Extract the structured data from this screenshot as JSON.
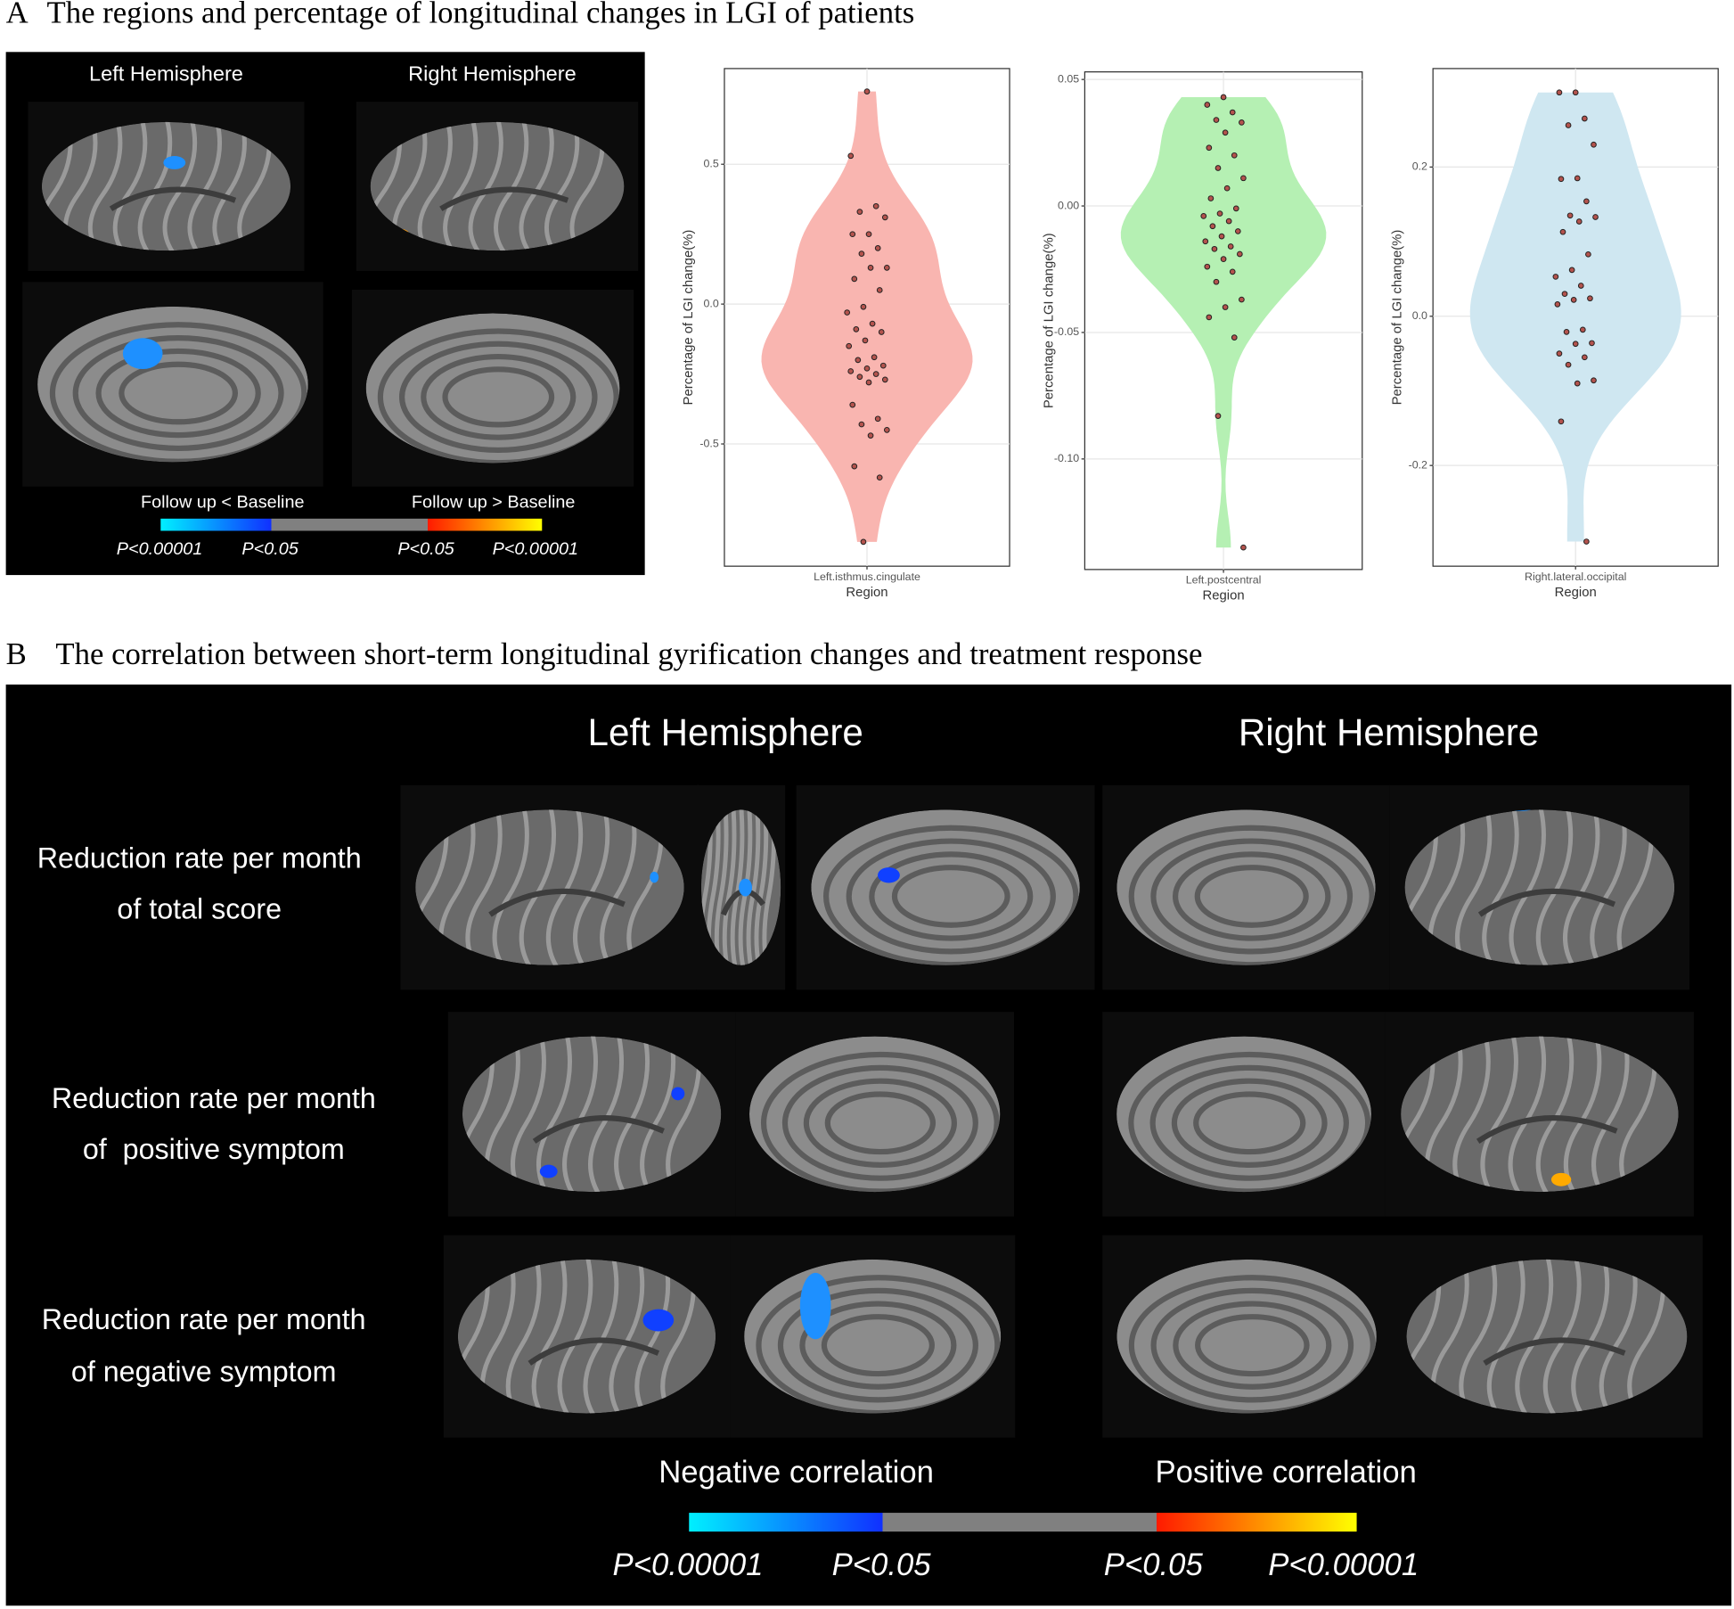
{
  "panel_a": {
    "label": "A",
    "title": "The regions and percentage of longitudinal changes in LGI of patients",
    "hemispheres": [
      "Left Hemisphere",
      "Right Hemisphere"
    ],
    "legend": {
      "left": "Follow up < Baseline",
      "right": "Follow up > Baseline",
      "ticks": [
        "P<0.00001",
        "P<0.05",
        "P<0.05",
        "P<0.00001"
      ]
    }
  },
  "chart_data": [
    {
      "type": "violin",
      "categories": [
        "Left.isthmus.cingulate"
      ],
      "xlabel": "Region",
      "ylabel": "Percentage of LGI change(%)",
      "color": "#f9b5b0",
      "point_color": "#b4534d",
      "grid": true,
      "ylim": [
        -0.937,
        0.842
      ],
      "yticks": [
        0.5,
        {
          "value": 0,
          "label": "0.0"
        },
        -0.5
      ],
      "values": [
        0.76,
        0.53,
        0.35,
        0.33,
        0.31,
        0.25,
        0.25,
        0.2,
        0.18,
        0.13,
        0.13,
        0.09,
        0.05,
        -0.01,
        -0.03,
        -0.07,
        -0.09,
        -0.1,
        -0.13,
        -0.15,
        -0.19,
        -0.2,
        -0.22,
        -0.23,
        -0.24,
        -0.25,
        -0.26,
        -0.27,
        -0.28,
        -0.36,
        -0.41,
        -0.43,
        -0.45,
        -0.47,
        -0.58,
        -0.62,
        -0.85
      ]
    },
    {
      "type": "violin",
      "categories": [
        "Left.postcentral"
      ],
      "xlabel": "Region",
      "ylabel": "Percentage of LGI change(%)",
      "color": "#b5f0b3",
      "point_color": "#b4534d",
      "grid": true,
      "ylim": [
        -0.1437,
        0.053
      ],
      "yticks": [
        0.05,
        {
          "value": 0,
          "label": "0.00"
        },
        -0.05,
        {
          "value": -0.1,
          "label": "-0.10"
        }
      ],
      "values": [
        0.043,
        0.04,
        0.037,
        0.034,
        0.033,
        0.029,
        0.023,
        0.02,
        0.015,
        0.011,
        0.007,
        0.003,
        -0.001,
        -0.003,
        -0.004,
        -0.006,
        -0.008,
        -0.01,
        -0.012,
        -0.014,
        -0.016,
        -0.017,
        -0.019,
        -0.021,
        -0.024,
        -0.026,
        -0.03,
        -0.037,
        -0.04,
        -0.044,
        -0.052,
        -0.083,
        -0.135
      ]
    },
    {
      "type": "violin",
      "categories": [
        "Right.lateral.occipital"
      ],
      "xlabel": "Region",
      "ylabel": "Percentage of LGI change(%)",
      "color": "#cfe7f1",
      "point_color": "#b4534d",
      "grid": true,
      "ylim": [
        -0.335,
        0.332
      ],
      "yticks": [
        0.2,
        {
          "value": 0,
          "label": "0.0"
        },
        -0.2
      ],
      "values": [
        0.3,
        0.3,
        0.265,
        0.256,
        0.23,
        0.185,
        0.184,
        0.154,
        0.135,
        0.133,
        0.127,
        0.113,
        0.083,
        0.062,
        0.053,
        0.041,
        0.03,
        0.024,
        0.022,
        0.016,
        -0.018,
        -0.021,
        -0.036,
        -0.037,
        -0.05,
        -0.055,
        -0.065,
        -0.086,
        -0.09,
        -0.141,
        -0.302
      ]
    }
  ],
  "panel_b": {
    "label": "B",
    "title": "The correlation between short-term longitudinal gyrification changes and treatment response",
    "hemispheres": [
      "Left Hemisphere",
      "Right Hemisphere"
    ],
    "rows": [
      [
        "Reduction rate per month",
        "of total score"
      ],
      [
        "Reduction rate per month",
        "of  positive symptom"
      ],
      [
        "Reduction rate per month",
        "of negative symptom"
      ]
    ],
    "legend": {
      "left": "Negative correlation",
      "right": "Positive correlation",
      "ticks": [
        "P<0.00001",
        "P<0.05",
        "P<0.05",
        "P<0.00001"
      ]
    }
  }
}
